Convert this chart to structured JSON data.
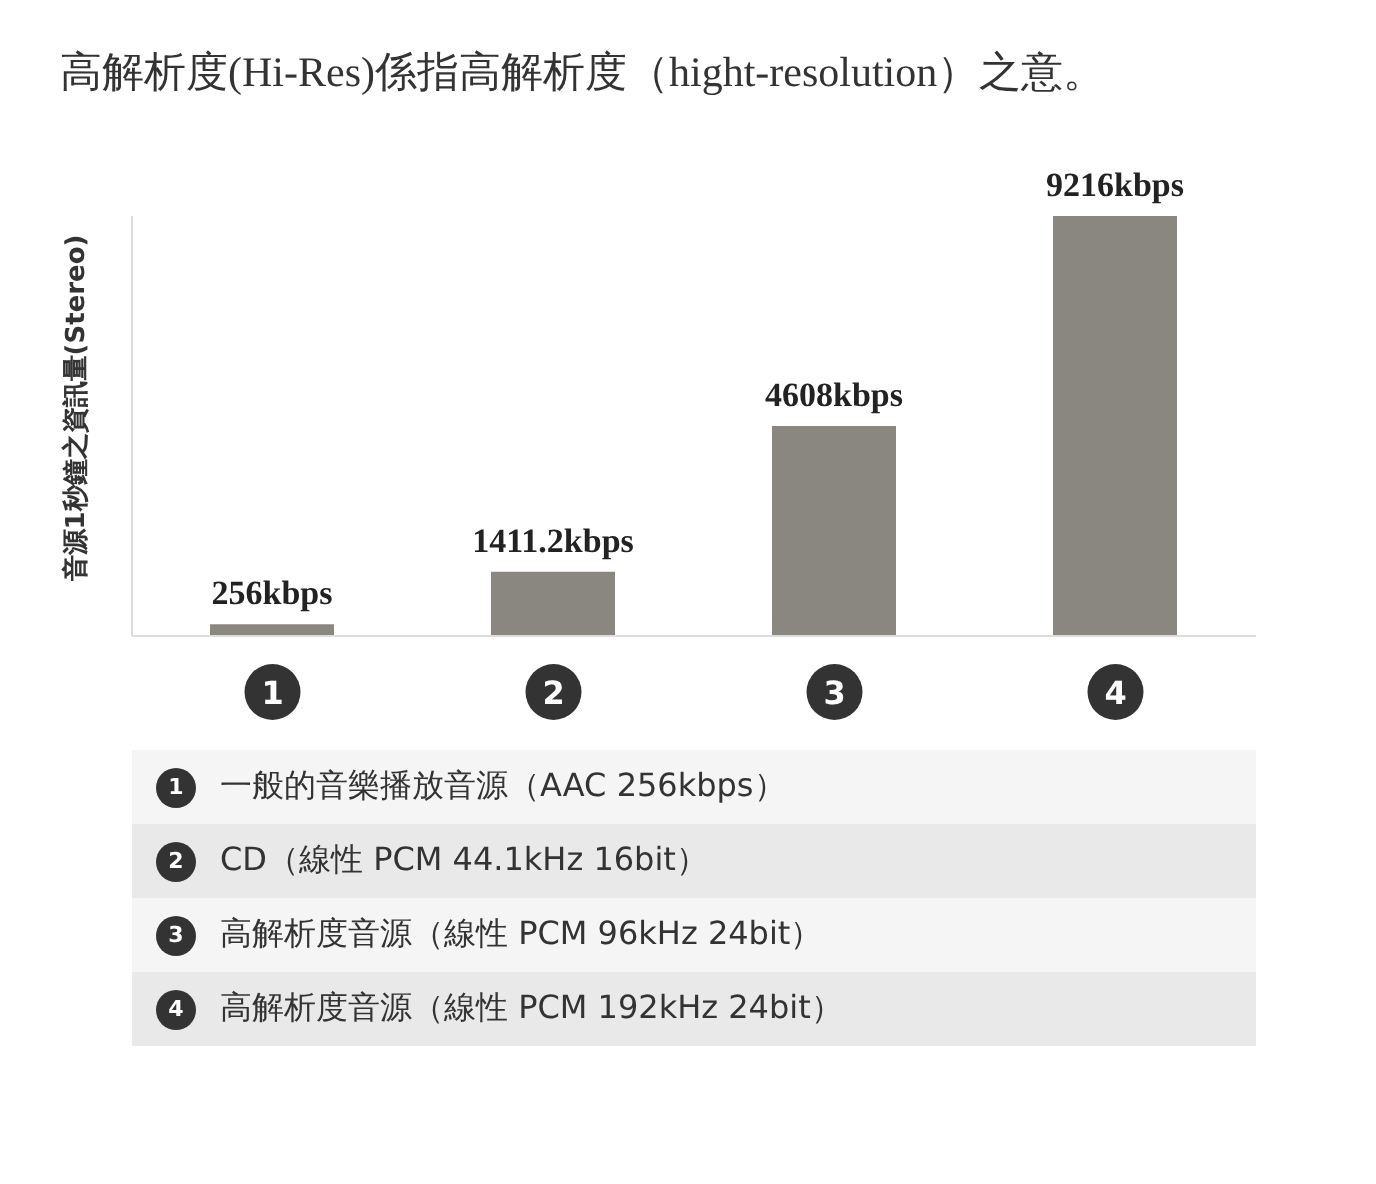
{
  "chart_data": {
    "type": "bar",
    "title": "高解析度(Hi-Res)係指高解析度（hight-resolution）之意。",
    "ylabel": "音源1秒鐘之資訊量(Stereo)",
    "categories": [
      "1",
      "2",
      "3",
      "4"
    ],
    "values": [
      256,
      1411.2,
      4608,
      9216
    ],
    "value_labels": [
      "256kbps",
      "1411.2kbps",
      "4608kbps",
      "9216kbps"
    ],
    "color": "#8a8780",
    "annotations": [
      "一般的音樂播放音源（AAC 256kbps）",
      "CD（線性 PCM 44.1kHz 16bit）",
      "高解析度音源（線性 PCM 96kHz 24bit）",
      "高解析度音源（線性 PCM 192kHz 24bit）"
    ]
  }
}
